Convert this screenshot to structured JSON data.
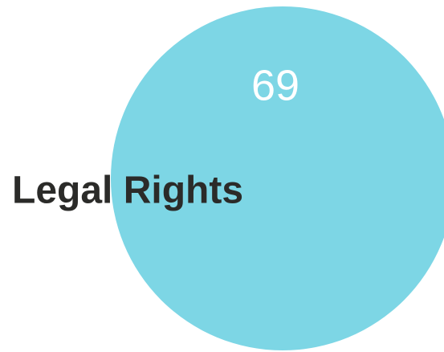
{
  "chart_data": {
    "type": "bubble",
    "categories": [
      "Legal Rights"
    ],
    "values": [
      69
    ],
    "color": "#7dd6e5",
    "label_color": "#2b2b29",
    "value_color": "#ffffff"
  }
}
